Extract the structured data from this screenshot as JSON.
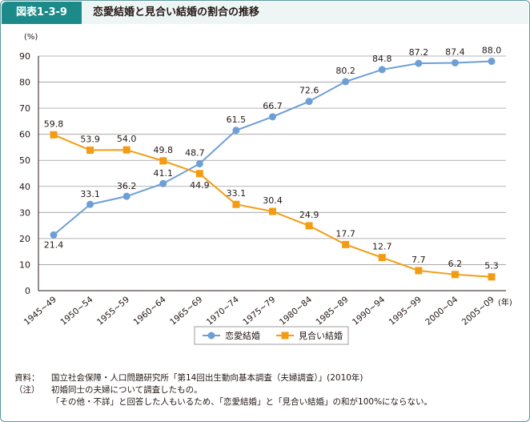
{
  "figure": {
    "number": "図表1-3-9",
    "title": "恋愛結婚と見合い結婚の割合の推移"
  },
  "notes": {
    "source_label": "資料：",
    "source_text": "国立社会保障・人口問題研究所「第14回出生動向基本調査（夫婦調査）」(2010年)",
    "note_label": "（注）",
    "note_line1": "初婚同士の夫婦について調査したもの。",
    "note_line2": "「その他・不詳」と回答した人もいるため、「恋愛結婚」と「見合い結婚」の和が100%にならない。"
  },
  "chart_data": {
    "type": "line",
    "ylabel": "(%)",
    "xlabel": "(年)",
    "ylim": [
      0,
      90
    ],
    "yticks": [
      0,
      10,
      20,
      30,
      40,
      50,
      60,
      70,
      80,
      90
    ],
    "grid": "horizontal",
    "legend_position": "bottom-center",
    "categories": [
      "1945~49",
      "1950~54",
      "1955~59",
      "1960~64",
      "1965~69",
      "1970~74",
      "1975~79",
      "1980~84",
      "1985~89",
      "1990~94",
      "1995~99",
      "2000~04",
      "2005~09"
    ],
    "series": [
      {
        "name": "恋愛結婚",
        "color": "#6d9fd6",
        "marker": "circle",
        "values": [
          21.4,
          33.1,
          36.2,
          41.1,
          48.7,
          61.5,
          66.7,
          72.6,
          80.2,
          84.8,
          87.2,
          87.4,
          88.0
        ]
      },
      {
        "name": "見合い結婚",
        "color": "#f39c12",
        "marker": "square",
        "values": [
          59.8,
          53.9,
          54.0,
          49.8,
          44.9,
          33.1,
          30.4,
          24.9,
          17.7,
          12.7,
          7.7,
          6.2,
          5.3
        ]
      }
    ]
  }
}
